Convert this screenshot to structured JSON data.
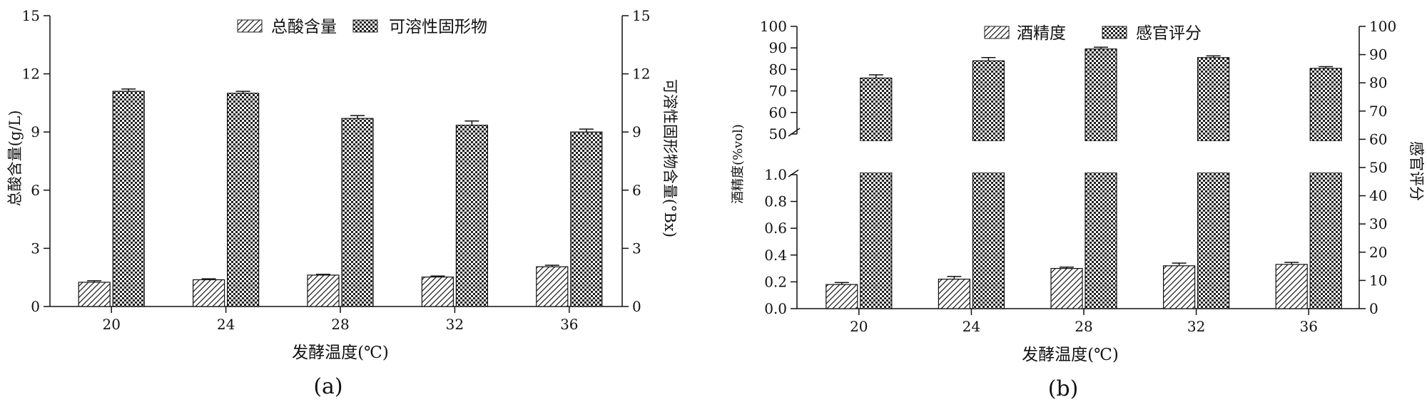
{
  "chart_data": [
    {
      "type": "bar",
      "panel_label": "(a)",
      "categories": [
        "20",
        "24",
        "28",
        "32",
        "36"
      ],
      "xlabel": "发酵温度(℃)",
      "ylabel_left": "总酸含量(g/L)",
      "ylabel_right": "可溶性固形物含量(°Bx)",
      "ylim_left": [
        0,
        15
      ],
      "ylim_right": [
        0,
        15
      ],
      "yticks_left": [
        0,
        3,
        6,
        9,
        12,
        15
      ],
      "yticks_right": [
        0,
        3,
        6,
        9,
        12,
        15
      ],
      "legend_position": "top-center",
      "series": [
        {
          "name": "总酸含量",
          "axis": "left",
          "pattern": "hatch",
          "values": [
            1.25,
            1.38,
            1.62,
            1.52,
            2.05
          ],
          "errors": [
            0.08,
            0.05,
            0.04,
            0.05,
            0.08
          ]
        },
        {
          "name": "可溶性固形物",
          "axis": "right",
          "pattern": "checker",
          "values": [
            11.1,
            11.0,
            9.7,
            9.35,
            9.0
          ],
          "errors": [
            0.12,
            0.1,
            0.15,
            0.22,
            0.15
          ]
        }
      ]
    },
    {
      "type": "bar",
      "panel_label": "(b)",
      "categories": [
        "20",
        "24",
        "28",
        "32",
        "36"
      ],
      "xlabel": "发酵温度(℃)",
      "ylabel_left": "酒精度(%vol)",
      "ylabel_right": "感官评分",
      "left_axis_break": {
        "lower_range": [
          0,
          1.0
        ],
        "upper_range": [
          50,
          100
        ]
      },
      "yticks_left_lower": [
        0.0,
        0.2,
        0.4,
        0.6,
        0.8,
        1.0
      ],
      "yticks_left_upper": [
        50,
        60,
        70,
        80,
        90,
        100
      ],
      "ylim_right": [
        0,
        100
      ],
      "yticks_right": [
        0,
        10,
        20,
        30,
        40,
        50,
        60,
        70,
        80,
        90,
        100
      ],
      "legend_position": "top-center",
      "series": [
        {
          "name": "酒精度",
          "axis": "left",
          "pattern": "hatch",
          "values": [
            0.18,
            0.22,
            0.3,
            0.32,
            0.33
          ],
          "errors": [
            0.015,
            0.02,
            0.01,
            0.02,
            0.015
          ]
        },
        {
          "name": "感官评分",
          "axis": "right",
          "pattern": "checker",
          "values": [
            76,
            84,
            89.5,
            85.5,
            80.5
          ],
          "errors": [
            1.5,
            1.5,
            0.8,
            0.8,
            0.8
          ]
        }
      ]
    }
  ]
}
